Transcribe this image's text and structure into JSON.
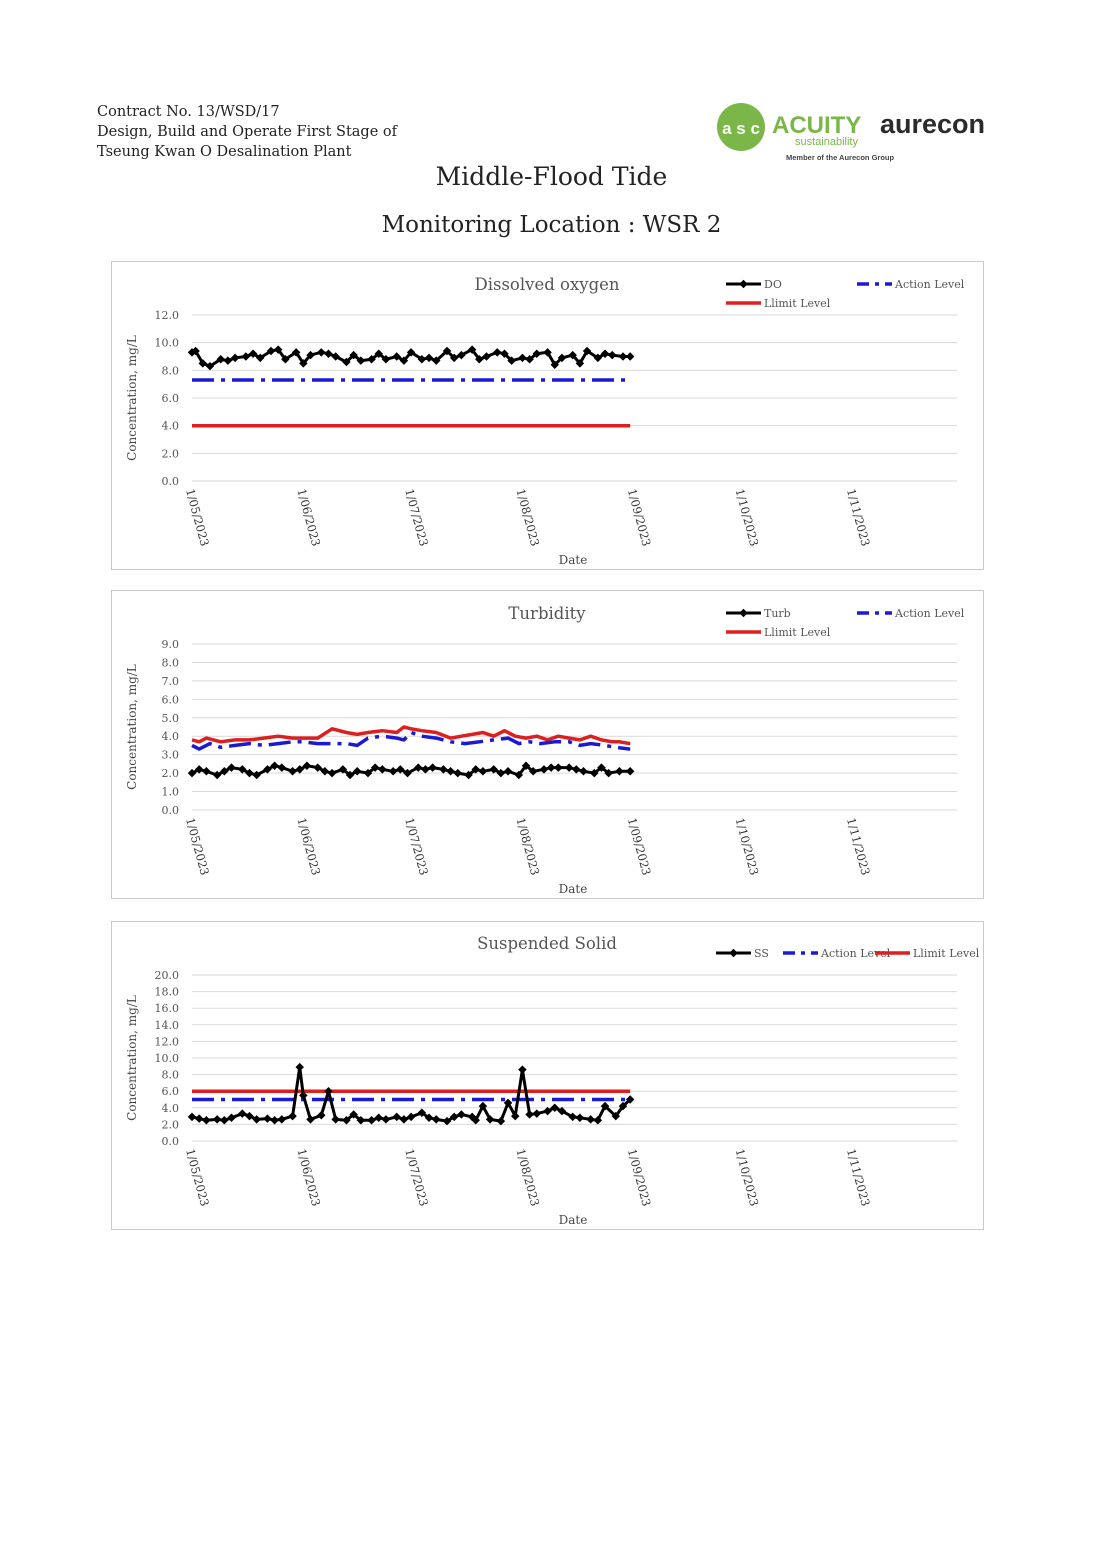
{
  "header": {
    "line1": "Contract No. 13/WSD/17",
    "line2": "Design, Build and Operate First Stage of",
    "line3": "Tseung Kwan O Desalination Plant"
  },
  "logos": {
    "acuity_mark": "a s c",
    "acuity_name": "ACUITY",
    "acuity_sub": "sustainability",
    "acuity_member": "Member of the Aurecon Group",
    "aurecon": "aurecon",
    "acuity_green": "#7ab648",
    "aurecon_dark": "#2b2b2b"
  },
  "doc_title": "Middle-Flood Tide",
  "doc_subtitle": "Monitoring Location : WSR 2",
  "colors": {
    "measured": "#000000",
    "action": "#1a1ad6",
    "limit": "#dd1f1f",
    "grid": "#d9d9d9"
  },
  "chart_data": [
    {
      "type": "line",
      "title": "Dissolved oxygen",
      "xlabel": "Date",
      "ylabel": "Concentration, mg/L",
      "ylim": [
        0,
        12
      ],
      "yticks": [
        "0.0",
        "2.0",
        "4.0",
        "6.0",
        "8.0",
        "10.0",
        "12.0"
      ],
      "xlim": [
        "2023-05-01",
        "2023-11-30"
      ],
      "xticks": [
        {
          "label": "1/05/2023",
          "date": "2023-05-01"
        },
        {
          "label": "1/06/2023",
          "date": "2023-06-01"
        },
        {
          "label": "1/07/2023",
          "date": "2023-07-01"
        },
        {
          "label": "1/08/2023",
          "date": "2023-08-01"
        },
        {
          "label": "1/09/2023",
          "date": "2023-09-01"
        },
        {
          "label": "1/10/2023",
          "date": "2023-10-01"
        },
        {
          "label": "1/11/2023",
          "date": "2023-11-01"
        }
      ],
      "legend": "top-right",
      "series": [
        {
          "name": "DO",
          "style": "measured",
          "x": [
            "2023-05-01",
            "2023-05-02",
            "2023-05-04",
            "2023-05-06",
            "2023-05-09",
            "2023-05-11",
            "2023-05-13",
            "2023-05-16",
            "2023-05-18",
            "2023-05-20",
            "2023-05-23",
            "2023-05-25",
            "2023-05-27",
            "2023-05-30",
            "2023-06-01",
            "2023-06-03",
            "2023-06-06",
            "2023-06-08",
            "2023-06-10",
            "2023-06-13",
            "2023-06-15",
            "2023-06-17",
            "2023-06-20",
            "2023-06-22",
            "2023-06-24",
            "2023-06-27",
            "2023-06-29",
            "2023-07-01",
            "2023-07-04",
            "2023-07-06",
            "2023-07-08",
            "2023-07-11",
            "2023-07-13",
            "2023-07-15",
            "2023-07-18",
            "2023-07-20",
            "2023-07-22",
            "2023-07-25",
            "2023-07-27",
            "2023-07-29",
            "2023-08-01",
            "2023-08-03",
            "2023-08-05",
            "2023-08-08",
            "2023-08-10",
            "2023-08-12",
            "2023-08-15",
            "2023-08-17",
            "2023-08-19",
            "2023-08-22",
            "2023-08-24",
            "2023-08-26",
            "2023-08-29",
            "2023-08-31"
          ],
          "values": [
            9.3,
            9.4,
            8.5,
            8.3,
            8.8,
            8.7,
            8.9,
            9.0,
            9.2,
            8.9,
            9.4,
            9.5,
            8.8,
            9.3,
            8.5,
            9.1,
            9.3,
            9.2,
            9.0,
            8.6,
            9.1,
            8.7,
            8.8,
            9.2,
            8.8,
            9.0,
            8.7,
            9.3,
            8.8,
            8.9,
            8.7,
            9.4,
            8.9,
            9.1,
            9.5,
            8.8,
            9.0,
            9.3,
            9.2,
            8.7,
            8.9,
            8.8,
            9.2,
            9.3,
            8.4,
            8.9,
            9.1,
            8.5,
            9.4,
            8.9,
            9.2,
            9.1,
            9.0,
            9.0
          ]
        },
        {
          "name": "Action Level",
          "style": "action",
          "x": [
            "2023-05-01",
            "2023-08-31"
          ],
          "values": [
            7.3,
            7.3
          ]
        },
        {
          "name": "Llimit Level",
          "style": "limit",
          "x": [
            "2023-05-01",
            "2023-08-31"
          ],
          "values": [
            4.0,
            4.0
          ]
        }
      ]
    },
    {
      "type": "line",
      "title": "Turbidity",
      "xlabel": "Date",
      "ylabel": "Concentration, mg/L",
      "ylim": [
        0,
        9
      ],
      "yticks": [
        "0.0",
        "1.0",
        "2.0",
        "3.0",
        "4.0",
        "5.0",
        "6.0",
        "7.0",
        "8.0",
        "9.0"
      ],
      "xlim": [
        "2023-05-01",
        "2023-11-30"
      ],
      "xticks": [
        {
          "label": "1/05/2023",
          "date": "2023-05-01"
        },
        {
          "label": "1/06/2023",
          "date": "2023-06-01"
        },
        {
          "label": "1/07/2023",
          "date": "2023-07-01"
        },
        {
          "label": "1/08/2023",
          "date": "2023-08-01"
        },
        {
          "label": "1/09/2023",
          "date": "2023-09-01"
        },
        {
          "label": "1/10/2023",
          "date": "2023-10-01"
        },
        {
          "label": "1/11/2023",
          "date": "2023-11-01"
        }
      ],
      "legend": "top-right",
      "series": [
        {
          "name": "Turb",
          "style": "measured",
          "x": [
            "2023-05-01",
            "2023-05-03",
            "2023-05-05",
            "2023-05-08",
            "2023-05-10",
            "2023-05-12",
            "2023-05-15",
            "2023-05-17",
            "2023-05-19",
            "2023-05-22",
            "2023-05-24",
            "2023-05-26",
            "2023-05-29",
            "2023-05-31",
            "2023-06-02",
            "2023-06-05",
            "2023-06-07",
            "2023-06-09",
            "2023-06-12",
            "2023-06-14",
            "2023-06-16",
            "2023-06-19",
            "2023-06-21",
            "2023-06-23",
            "2023-06-26",
            "2023-06-28",
            "2023-06-30",
            "2023-07-03",
            "2023-07-05",
            "2023-07-07",
            "2023-07-10",
            "2023-07-12",
            "2023-07-14",
            "2023-07-17",
            "2023-07-19",
            "2023-07-21",
            "2023-07-24",
            "2023-07-26",
            "2023-07-28",
            "2023-07-31",
            "2023-08-02",
            "2023-08-04",
            "2023-08-07",
            "2023-08-09",
            "2023-08-11",
            "2023-08-14",
            "2023-08-16",
            "2023-08-18",
            "2023-08-21",
            "2023-08-23",
            "2023-08-25",
            "2023-08-28",
            "2023-08-31"
          ],
          "values": [
            2.0,
            2.2,
            2.1,
            1.9,
            2.1,
            2.3,
            2.2,
            2.0,
            1.9,
            2.2,
            2.4,
            2.3,
            2.1,
            2.2,
            2.4,
            2.3,
            2.1,
            2.0,
            2.2,
            1.9,
            2.1,
            2.0,
            2.3,
            2.2,
            2.1,
            2.2,
            2.0,
            2.3,
            2.2,
            2.3,
            2.2,
            2.1,
            2.0,
            1.9,
            2.2,
            2.1,
            2.2,
            2.0,
            2.1,
            1.9,
            2.4,
            2.1,
            2.2,
            2.3,
            2.3,
            2.3,
            2.2,
            2.1,
            2.0,
            2.3,
            2.0,
            2.1,
            2.1
          ]
        },
        {
          "name": "Action Level",
          "style": "action",
          "x": [
            "2023-05-01",
            "2023-05-03",
            "2023-05-06",
            "2023-05-09",
            "2023-05-13",
            "2023-05-17",
            "2023-05-21",
            "2023-05-25",
            "2023-05-29",
            "2023-06-01",
            "2023-06-05",
            "2023-06-09",
            "2023-06-13",
            "2023-06-16",
            "2023-06-19",
            "2023-06-23",
            "2023-06-27",
            "2023-06-29",
            "2023-07-01",
            "2023-07-04",
            "2023-07-08",
            "2023-07-12",
            "2023-07-16",
            "2023-07-20",
            "2023-07-24",
            "2023-07-28",
            "2023-07-31",
            "2023-08-03",
            "2023-08-06",
            "2023-08-10",
            "2023-08-14",
            "2023-08-17",
            "2023-08-20",
            "2023-08-24",
            "2023-08-27",
            "2023-08-31"
          ],
          "values": [
            3.5,
            3.3,
            3.6,
            3.4,
            3.5,
            3.6,
            3.5,
            3.6,
            3.7,
            3.7,
            3.6,
            3.6,
            3.6,
            3.5,
            3.9,
            4.0,
            3.9,
            3.8,
            4.2,
            4.0,
            3.9,
            3.7,
            3.6,
            3.7,
            3.8,
            3.9,
            3.6,
            3.7,
            3.6,
            3.7,
            3.7,
            3.5,
            3.6,
            3.5,
            3.4,
            3.3
          ]
        },
        {
          "name": "Llimit Level",
          "style": "limit",
          "x": [
            "2023-05-01",
            "2023-05-03",
            "2023-05-05",
            "2023-05-09",
            "2023-05-13",
            "2023-05-17",
            "2023-05-21",
            "2023-05-25",
            "2023-05-29",
            "2023-06-01",
            "2023-06-05",
            "2023-06-09",
            "2023-06-13",
            "2023-06-16",
            "2023-06-19",
            "2023-06-23",
            "2023-06-27",
            "2023-06-29",
            "2023-07-01",
            "2023-07-04",
            "2023-07-08",
            "2023-07-12",
            "2023-07-15",
            "2023-07-18",
            "2023-07-21",
            "2023-07-24",
            "2023-07-27",
            "2023-07-30",
            "2023-08-02",
            "2023-08-05",
            "2023-08-08",
            "2023-08-11",
            "2023-08-14",
            "2023-08-17",
            "2023-08-20",
            "2023-08-23",
            "2023-08-26",
            "2023-08-28",
            "2023-08-31"
          ],
          "values": [
            3.8,
            3.7,
            3.9,
            3.7,
            3.8,
            3.8,
            3.9,
            4.0,
            3.9,
            3.9,
            3.9,
            4.4,
            4.2,
            4.1,
            4.2,
            4.3,
            4.2,
            4.5,
            4.4,
            4.3,
            4.2,
            3.9,
            4.0,
            4.1,
            4.2,
            4.0,
            4.3,
            4.0,
            3.9,
            4.0,
            3.8,
            4.0,
            3.9,
            3.8,
            4.0,
            3.8,
            3.7,
            3.7,
            3.6
          ]
        }
      ]
    },
    {
      "type": "line",
      "title": "Suspended Solid",
      "xlabel": "Date",
      "ylabel": "Concentration, mg/L",
      "ylim": [
        0,
        20
      ],
      "yticks": [
        "0.0",
        "2.0",
        "4.0",
        "6.0",
        "8.0",
        "10.0",
        "12.0",
        "14.0",
        "16.0",
        "18.0",
        "20.0"
      ],
      "xlim": [
        "2023-05-01",
        "2023-11-30"
      ],
      "xticks": [
        {
          "label": "1/05/2023",
          "date": "2023-05-01"
        },
        {
          "label": "1/06/2023",
          "date": "2023-06-01"
        },
        {
          "label": "1/07/2023",
          "date": "2023-07-01"
        },
        {
          "label": "1/08/2023",
          "date": "2023-08-01"
        },
        {
          "label": "1/09/2023",
          "date": "2023-09-01"
        },
        {
          "label": "1/10/2023",
          "date": "2023-10-01"
        },
        {
          "label": "1/11/2023",
          "date": "2023-11-01"
        }
      ],
      "legend": "top-right",
      "series": [
        {
          "name": "SS",
          "style": "measured",
          "x": [
            "2023-05-01",
            "2023-05-03",
            "2023-05-05",
            "2023-05-08",
            "2023-05-10",
            "2023-05-12",
            "2023-05-15",
            "2023-05-17",
            "2023-05-19",
            "2023-05-22",
            "2023-05-24",
            "2023-05-26",
            "2023-05-29",
            "2023-05-31",
            "2023-06-01",
            "2023-06-03",
            "2023-06-06",
            "2023-06-08",
            "2023-06-10",
            "2023-06-13",
            "2023-06-15",
            "2023-06-17",
            "2023-06-20",
            "2023-06-22",
            "2023-06-24",
            "2023-06-27",
            "2023-06-29",
            "2023-07-01",
            "2023-07-04",
            "2023-07-06",
            "2023-07-08",
            "2023-07-11",
            "2023-07-13",
            "2023-07-15",
            "2023-07-18",
            "2023-07-19",
            "2023-07-21",
            "2023-07-23",
            "2023-07-26",
            "2023-07-28",
            "2023-07-30",
            "2023-08-01",
            "2023-08-03",
            "2023-08-05",
            "2023-08-08",
            "2023-08-10",
            "2023-08-12",
            "2023-08-15",
            "2023-08-17",
            "2023-08-20",
            "2023-08-22",
            "2023-08-24",
            "2023-08-27",
            "2023-08-29",
            "2023-08-31"
          ],
          "values": [
            2.9,
            2.7,
            2.5,
            2.6,
            2.5,
            2.8,
            3.3,
            3.0,
            2.6,
            2.7,
            2.5,
            2.6,
            3.0,
            8.9,
            5.5,
            2.6,
            3.1,
            6.0,
            2.6,
            2.5,
            3.2,
            2.5,
            2.5,
            2.8,
            2.6,
            2.9,
            2.6,
            2.9,
            3.4,
            2.8,
            2.6,
            2.4,
            2.9,
            3.2,
            2.9,
            2.5,
            4.2,
            2.6,
            2.4,
            4.6,
            3.0,
            8.6,
            3.2,
            3.3,
            3.6,
            4.0,
            3.6,
            2.9,
            2.8,
            2.6,
            2.5,
            4.2,
            3.0,
            4.2,
            5.0
          ]
        },
        {
          "name": "Action Level",
          "style": "action",
          "x": [
            "2023-05-01",
            "2023-08-31"
          ],
          "values": [
            5.0,
            5.0
          ]
        },
        {
          "name": "Llimit Level",
          "style": "limit",
          "x": [
            "2023-05-01",
            "2023-08-31"
          ],
          "values": [
            6.0,
            6.0
          ]
        }
      ]
    }
  ]
}
